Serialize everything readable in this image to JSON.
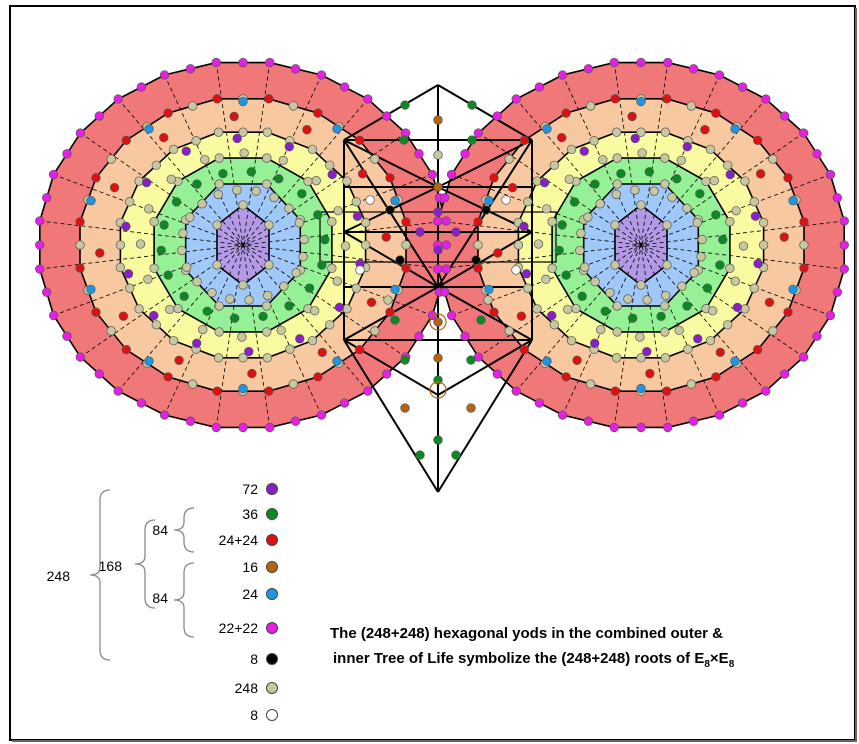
{
  "colors": {
    "purple": "#8a1ec8",
    "green": "#0b8a24",
    "red": "#e01010",
    "brown": "#b5650f",
    "blue": "#1e96e6",
    "magenta": "#e61ee6",
    "black": "#000000",
    "tan": "#c8c8a0",
    "white": "#ffffff",
    "ring_red": "#f07878",
    "ring_orange": "#f8c8a0",
    "ring_yellow": "#fafaa0",
    "ring_green": "#96f096",
    "ring_blue": "#a0c8f8",
    "ring_violet": "#b49ae6"
  },
  "legend": {
    "rows": [
      {
        "label": "72",
        "color": "purple"
      },
      {
        "label": "36",
        "color": "green"
      },
      {
        "label": "24+24",
        "color": "red"
      },
      {
        "label": "16",
        "color": "brown"
      },
      {
        "label": "24",
        "color": "blue"
      },
      {
        "label": "22+22",
        "color": "magenta"
      },
      {
        "label": "8",
        "color": "black"
      },
      {
        "label": "248",
        "color": "tan"
      },
      {
        "label": "8",
        "color": "white"
      }
    ],
    "brace_total": "248",
    "brace_168": "168",
    "brace_84_top": "84",
    "brace_84_bottom": "84"
  },
  "caption": {
    "line1": "The (248+248) hexagonal yods in the combined outer &",
    "line2_prefix": "inner Tree of Life symbolize the (248+248) roots of E",
    "line2_sub1": "8",
    "line2_mid": "×E",
    "line2_sub2": "8"
  }
}
